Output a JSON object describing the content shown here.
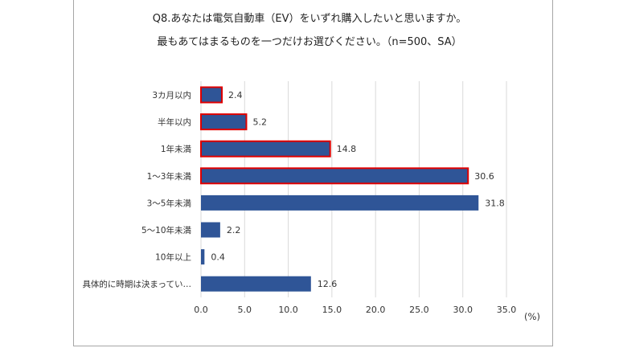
{
  "chart_data": {
    "type": "bar",
    "orientation": "horizontal",
    "title": [
      "Q8.あなたは電気自動車（EV）をいずれ購入したいと思いますか。",
      "最もあてはまるものを一つだけお選びください。（n=500、SA）"
    ],
    "categories": [
      "3カ月以内",
      "半年以内",
      "1年未満",
      "1～3年未満",
      "3～5年未満",
      "5～10年未満",
      "10年以上",
      "具体的に時期は決まってい…"
    ],
    "values": [
      2.4,
      5.2,
      14.8,
      30.6,
      31.8,
      2.2,
      0.4,
      12.6
    ],
    "highlighted": [
      true,
      true,
      true,
      true,
      false,
      false,
      false,
      false
    ],
    "xlim": [
      0,
      35
    ],
    "xticks": [
      "0.0",
      "5.0",
      "10.0",
      "15.0",
      "20.0",
      "25.0",
      "30.0",
      "35.0"
    ],
    "xlabel": "(%)",
    "grid": true,
    "bar_color": "#2f5597",
    "highlight_color": "#e00000"
  }
}
